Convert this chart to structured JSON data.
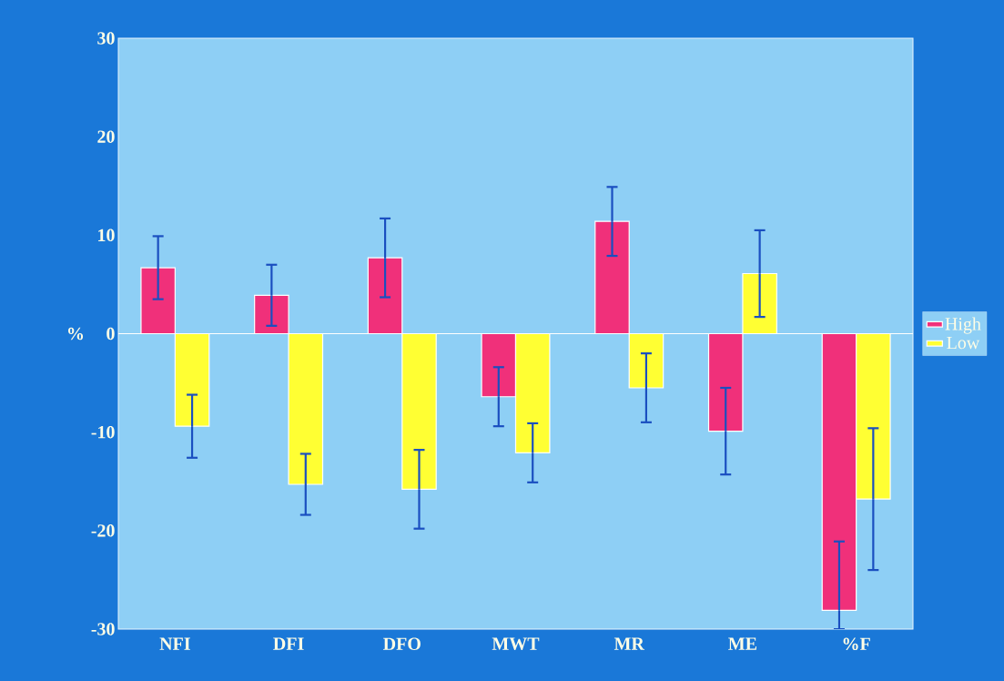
{
  "chart_data": {
    "type": "bar",
    "ylabel": "%",
    "categories": [
      "NFI",
      "DFI",
      "DFO",
      "MWT",
      "MR",
      "ME",
      "%F"
    ],
    "series": [
      {
        "name": "High",
        "color": "#f0307a",
        "values": [
          6.7,
          3.9,
          7.7,
          -6.4,
          11.4,
          -9.9,
          -28.1
        ],
        "errors": [
          3.2,
          3.1,
          4,
          3,
          3.5,
          4.4,
          [
            -30,
            -21.1
          ]
        ]
      },
      {
        "name": "Low",
        "color": "#ffff33",
        "values": [
          -9.4,
          -15.3,
          -15.8,
          -12.1,
          -5.5,
          6.1,
          -16.8
        ],
        "errors": [
          3.2,
          3.1,
          4,
          3,
          3.5,
          4.4,
          7.2
        ]
      }
    ],
    "ylim": [
      -30,
      30
    ],
    "yticks": [
      -30,
      -20,
      -10,
      0,
      10,
      20,
      30
    ],
    "legend": "right"
  }
}
